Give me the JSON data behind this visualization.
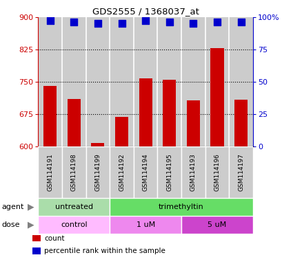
{
  "title": "GDS2555 / 1368037_at",
  "samples": [
    "GSM114191",
    "GSM114198",
    "GSM114199",
    "GSM114192",
    "GSM114194",
    "GSM114195",
    "GSM114193",
    "GSM114196",
    "GSM114197"
  ],
  "bar_values": [
    740,
    710,
    608,
    668,
    758,
    754,
    706,
    828,
    708
  ],
  "percentile_values": [
    97,
    96,
    95,
    95,
    97,
    96,
    95,
    96,
    96
  ],
  "y_min": 600,
  "y_max": 900,
  "y_ticks": [
    600,
    675,
    750,
    825,
    900
  ],
  "y_right_ticks": [
    0,
    25,
    50,
    75,
    100
  ],
  "y_right_labels": [
    "0",
    "25",
    "50",
    "75",
    "100%"
  ],
  "bar_color": "#cc0000",
  "dot_color": "#0000cc",
  "agent_groups": [
    {
      "label": "untreated",
      "start": 0,
      "end": 3,
      "color": "#aaeea a"
    },
    {
      "label": "trimethyltin",
      "start": 3,
      "end": 9,
      "color": "#66dd66"
    }
  ],
  "dose_groups": [
    {
      "label": "control",
      "start": 0,
      "end": 3,
      "color": "#ffbbff"
    },
    {
      "label": "1 uM",
      "start": 3,
      "end": 6,
      "color": "#ee88ee"
    },
    {
      "label": "5 uM",
      "start": 6,
      "end": 9,
      "color": "#cc44cc"
    }
  ],
  "legend_items": [
    {
      "color": "#cc0000",
      "label": "count"
    },
    {
      "color": "#0000cc",
      "label": "percentile rank within the sample"
    }
  ],
  "agent_label": "agent",
  "dose_label": "dose",
  "bar_width": 0.55,
  "dot_size": 50,
  "col_bg_color": "#cccccc",
  "col_border_color": "#ffffff",
  "agent_untreated_color": "#aaddaa",
  "agent_trimethyltin_color": "#66dd66",
  "dose_control_color": "#ffbbff",
  "dose_1um_color": "#ee88ee",
  "dose_5um_color": "#cc44cc"
}
